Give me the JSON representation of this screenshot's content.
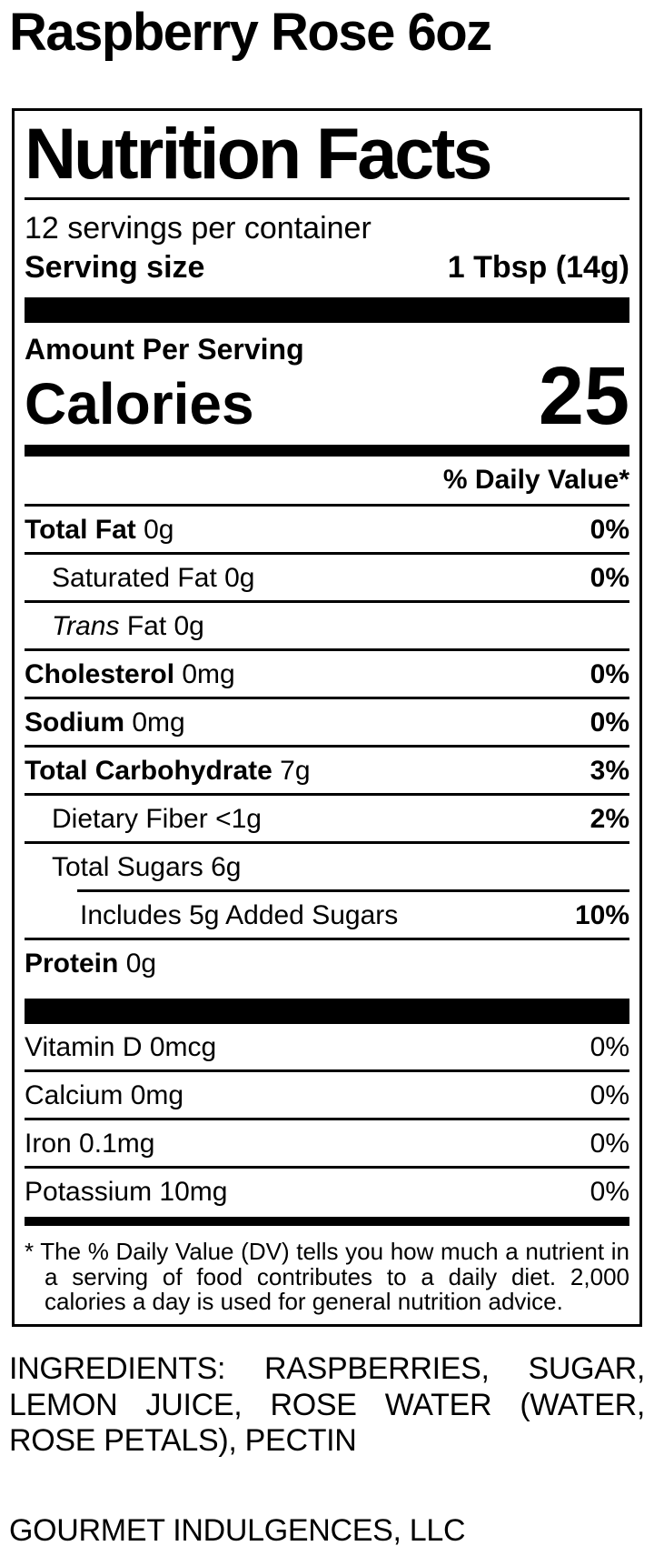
{
  "colors": {
    "text": "#000000",
    "background": "#ffffff"
  },
  "page": {
    "title": "Raspberry Rose 6oz",
    "footer_company": "GOURMET INDULGENCES, LLC"
  },
  "label": {
    "heading": "Nutrition Facts",
    "servings_per_container": "12 servings per container",
    "serving_size_label": "Serving size",
    "serving_size_value": "1 Tbsp (14g)",
    "amount_per_serving": "Amount Per Serving",
    "calories_label": "Calories",
    "calories_value": "25",
    "daily_value_header": "% Daily Value*",
    "rows": [
      {
        "name": "Total Fat",
        "amount": "0g",
        "dv": "0%"
      },
      {
        "name": "Saturated Fat",
        "amount": "0g",
        "dv": "0%"
      },
      {
        "name": "Trans",
        "amount": "Fat 0g",
        "dv": ""
      },
      {
        "name": "Cholesterol",
        "amount": "0mg",
        "dv": "0%"
      },
      {
        "name": "Sodium",
        "amount": "0mg",
        "dv": "0%"
      },
      {
        "name": "Total Carbohydrate",
        "amount": "7g",
        "dv": "3%"
      },
      {
        "name": "Dietary Fiber",
        "amount": "<1g",
        "dv": "2%"
      },
      {
        "name": "Total Sugars",
        "amount": "6g",
        "dv": ""
      },
      {
        "name": "Includes 5g Added Sugars",
        "amount": "",
        "dv": "10%"
      },
      {
        "name": "Protein",
        "amount": "0g",
        "dv": ""
      }
    ],
    "vitamins": [
      {
        "name": "Vitamin D",
        "amount": "0mcg",
        "dv": "0%"
      },
      {
        "name": "Calcium",
        "amount": "0mg",
        "dv": "0%"
      },
      {
        "name": "Iron",
        "amount": "0.1mg",
        "dv": "0%"
      },
      {
        "name": "Potassium",
        "amount": "10mg",
        "dv": "0%"
      }
    ],
    "footnote": "* The % Daily Value (DV) tells you how much a nutrient in a serving of food contributes to a daily diet. 2,000 calories a day is used for general nutrition advice."
  },
  "ingredients": "INGREDIENTS: RASPBERRIES, SUGAR, LEMON JUICE, ROSE WATER (WATER, ROSE PETALS), PECTIN"
}
